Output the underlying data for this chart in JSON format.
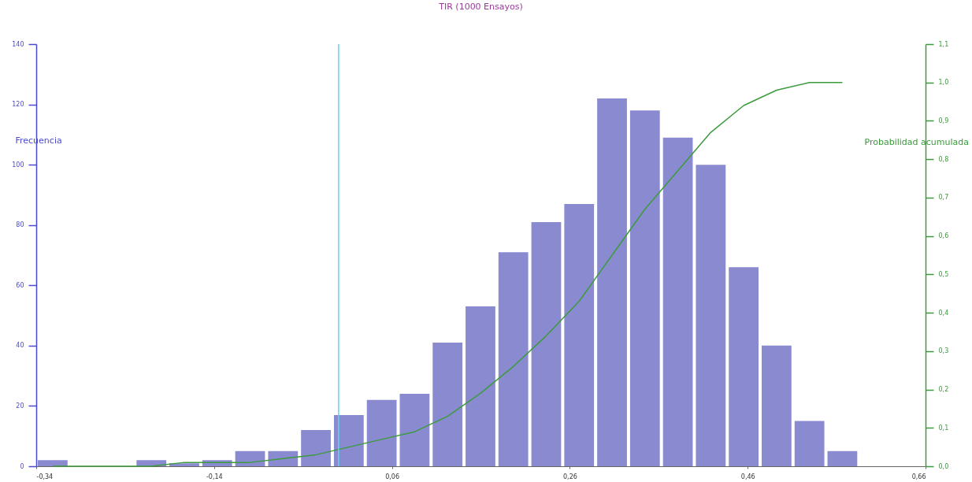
{
  "chart_data": {
    "type": "histogram",
    "title": "TIR (1000 Ensayos)",
    "ylabel": "Frecuencia",
    "y2label": "Probabilidad acumulada",
    "bins": [
      -0.34,
      -0.303,
      -0.266,
      -0.229,
      -0.192,
      -0.155,
      -0.118,
      -0.081,
      -0.044,
      -0.007,
      0.03,
      0.067,
      0.104,
      0.141,
      0.178,
      0.215,
      0.252,
      0.289,
      0.326,
      0.363,
      0.4,
      0.437,
      0.474,
      0.511,
      0.548,
      0.585
    ],
    "series": [
      {
        "color": "#8a8ad0",
        "values": [
          2,
          0,
          0,
          2,
          1,
          2,
          5,
          5,
          12,
          17,
          22,
          24,
          41,
          53,
          71,
          81,
          87,
          122,
          118,
          109,
          100,
          66,
          40,
          15,
          5
        ]
      },
      {
        "type": "line",
        "axis": "y2",
        "color": "#3c9a3c",
        "x": [
          -0.3215,
          -0.2845,
          -0.2475,
          -0.2105,
          -0.1735,
          -0.1365,
          -0.0995,
          -0.0625,
          -0.0255,
          0.0115,
          0.0485,
          0.0855,
          0.1225,
          0.1595,
          0.1965,
          0.2335,
          0.2705,
          0.3075,
          0.3445,
          0.3815,
          0.4185,
          0.4555,
          0.4925,
          0.5295,
          0.5665
        ],
        "values": [
          0,
          0,
          0,
          0,
          0.01,
          0.01,
          0.01,
          0.02,
          0.03,
          0.05,
          0.07,
          0.09,
          0.13,
          0.19,
          0.26,
          0.34,
          0.43,
          0.55,
          0.67,
          0.77,
          0.87,
          0.94,
          0.98,
          1.0,
          1.0
        ]
      }
    ],
    "xlim": [
      -0.34,
      0.66
    ],
    "xticks": [
      {
        "value": -0.34,
        "label": "-0,34"
      },
      {
        "value": -0.14,
        "label": "-0,14"
      },
      {
        "value": 0.06,
        "label": "0,06"
      },
      {
        "value": 0.26,
        "label": "0,26"
      },
      {
        "value": 0.46,
        "label": "0,46"
      },
      {
        "value": 0.66,
        "label": "0,66"
      }
    ],
    "ylim": [
      0,
      140
    ],
    "yticks": [
      0,
      20,
      40,
      60,
      80,
      100,
      120,
      140
    ],
    "y2lim": [
      0,
      1.1
    ],
    "y2ticks": [
      {
        "value": 0,
        "label": "0,0"
      },
      {
        "value": 0.1,
        "label": "0,1"
      },
      {
        "value": 0.2,
        "label": "0,2"
      },
      {
        "value": 0.3,
        "label": "0,3"
      },
      {
        "value": 0.4,
        "label": "0,4"
      },
      {
        "value": 0.5,
        "label": "0,5"
      },
      {
        "value": 0.6,
        "label": "0,6"
      },
      {
        "value": 0.7,
        "label": "0,7"
      },
      {
        "value": 0.8,
        "label": "0,8"
      },
      {
        "value": 0.9,
        "label": "0,9"
      },
      {
        "value": 1.0,
        "label": "1,0"
      },
      {
        "value": 1.1,
        "label": "1,1"
      }
    ],
    "ref_lines": [
      {
        "axis": "x",
        "value": 0,
        "color": "#5ad8e6"
      }
    ]
  }
}
